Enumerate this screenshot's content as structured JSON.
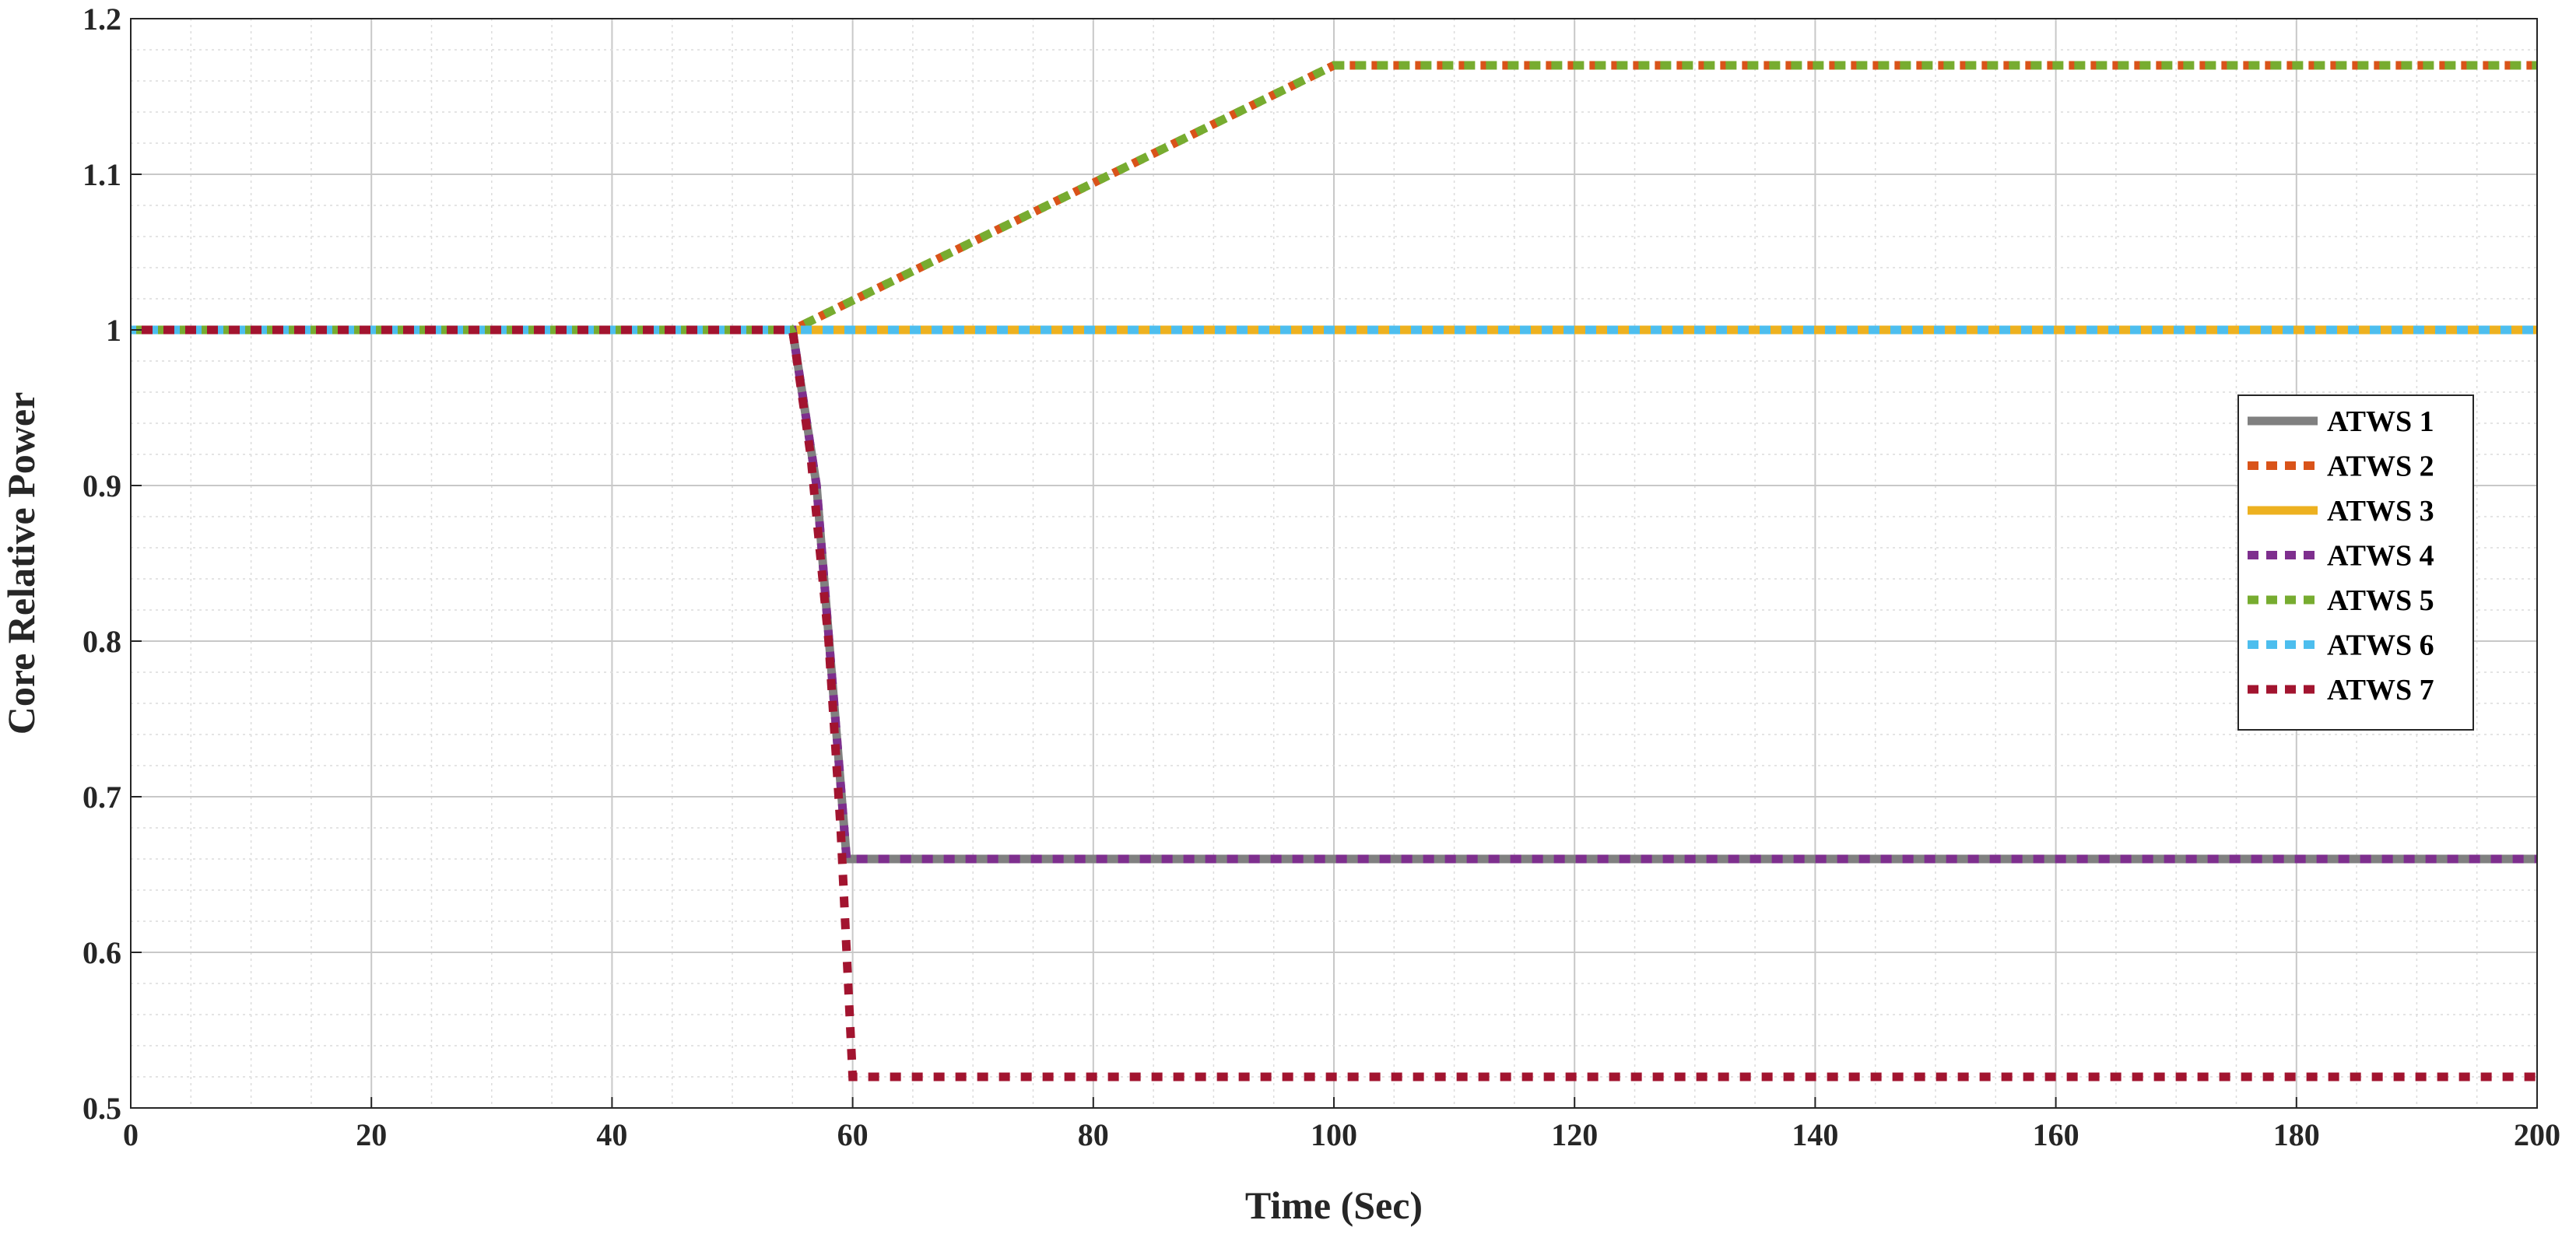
{
  "chart_data": {
    "type": "line",
    "xlabel": "Time (Sec)",
    "ylabel": "Core Relative Power",
    "xlim": [
      0,
      200
    ],
    "ylim": [
      0.5,
      1.2
    ],
    "x_ticks": [
      "0",
      "20",
      "40",
      "60",
      "80",
      "100",
      "120",
      "140",
      "160",
      "180",
      "200"
    ],
    "y_ticks": [
      "0.5",
      "0.6",
      "0.7",
      "0.8",
      "0.9",
      "1",
      "1.1",
      "1.2"
    ],
    "grid": true,
    "minor_grid": true,
    "legend_position": "right",
    "series": [
      {
        "name": "ATWS 1",
        "color": "#808080",
        "style": "solid",
        "x": [
          0,
          55,
          57,
          59.5,
          200
        ],
        "y": [
          1.0,
          1.0,
          0.9,
          0.66,
          0.66
        ]
      },
      {
        "name": "ATWS 2",
        "color": "#D95319",
        "style": "dotted",
        "x": [
          0,
          55,
          100,
          200
        ],
        "y": [
          1.0,
          1.0,
          1.17,
          1.17
        ]
      },
      {
        "name": "ATWS 3",
        "color": "#EDB120",
        "style": "solid",
        "x": [
          0,
          200
        ],
        "y": [
          1.0,
          1.0
        ]
      },
      {
        "name": "ATWS 4",
        "color": "#7E2F8E",
        "style": "dotted",
        "x": [
          0,
          55,
          57,
          59.5,
          200
        ],
        "y": [
          1.0,
          1.0,
          0.9,
          0.66,
          0.66
        ]
      },
      {
        "name": "ATWS 5",
        "color": "#77AC30",
        "style": "dotted",
        "x": [
          0,
          55,
          100,
          200
        ],
        "y": [
          1.0,
          1.0,
          1.17,
          1.17
        ]
      },
      {
        "name": "ATWS 6",
        "color": "#4DBEEE",
        "style": "dotted",
        "x": [
          0,
          200
        ],
        "y": [
          1.0,
          1.0
        ]
      },
      {
        "name": "ATWS 7",
        "color": "#A2142F",
        "style": "dotted",
        "x": [
          0,
          55,
          56.5,
          58,
          59,
          60,
          200
        ],
        "y": [
          1.0,
          1.0,
          0.92,
          0.8,
          0.68,
          0.52,
          0.52
        ]
      }
    ]
  }
}
